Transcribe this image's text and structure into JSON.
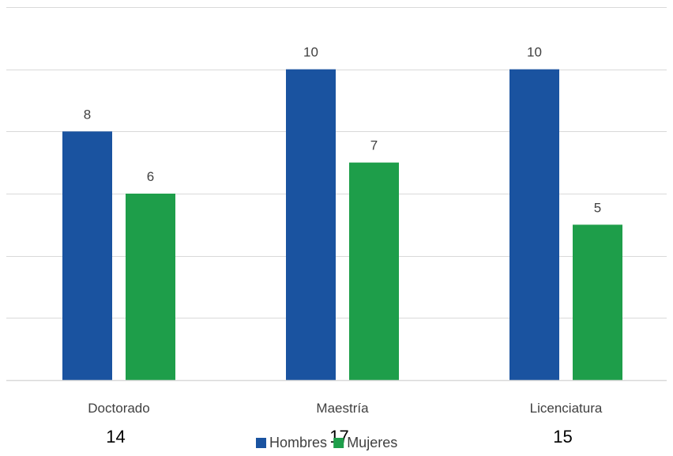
{
  "chart_data": {
    "type": "bar",
    "categories": [
      "Doctorado",
      "Maestría",
      "Licenciatura"
    ],
    "series": [
      {
        "name": "Hombres",
        "values": [
          8,
          10,
          10
        ],
        "color": "#1a53a0"
      },
      {
        "name": "Mujeres",
        "values": [
          6,
          7,
          5
        ],
        "color": "#1e9e4a"
      }
    ],
    "totals": [
      "14",
      "17",
      "15"
    ],
    "title": "",
    "xlabel": "",
    "ylabel": "",
    "ylim": [
      0,
      12
    ],
    "y_tick_step": 2,
    "y_tick_labels_shown": false,
    "grid": true,
    "legend_position": "bottom"
  }
}
